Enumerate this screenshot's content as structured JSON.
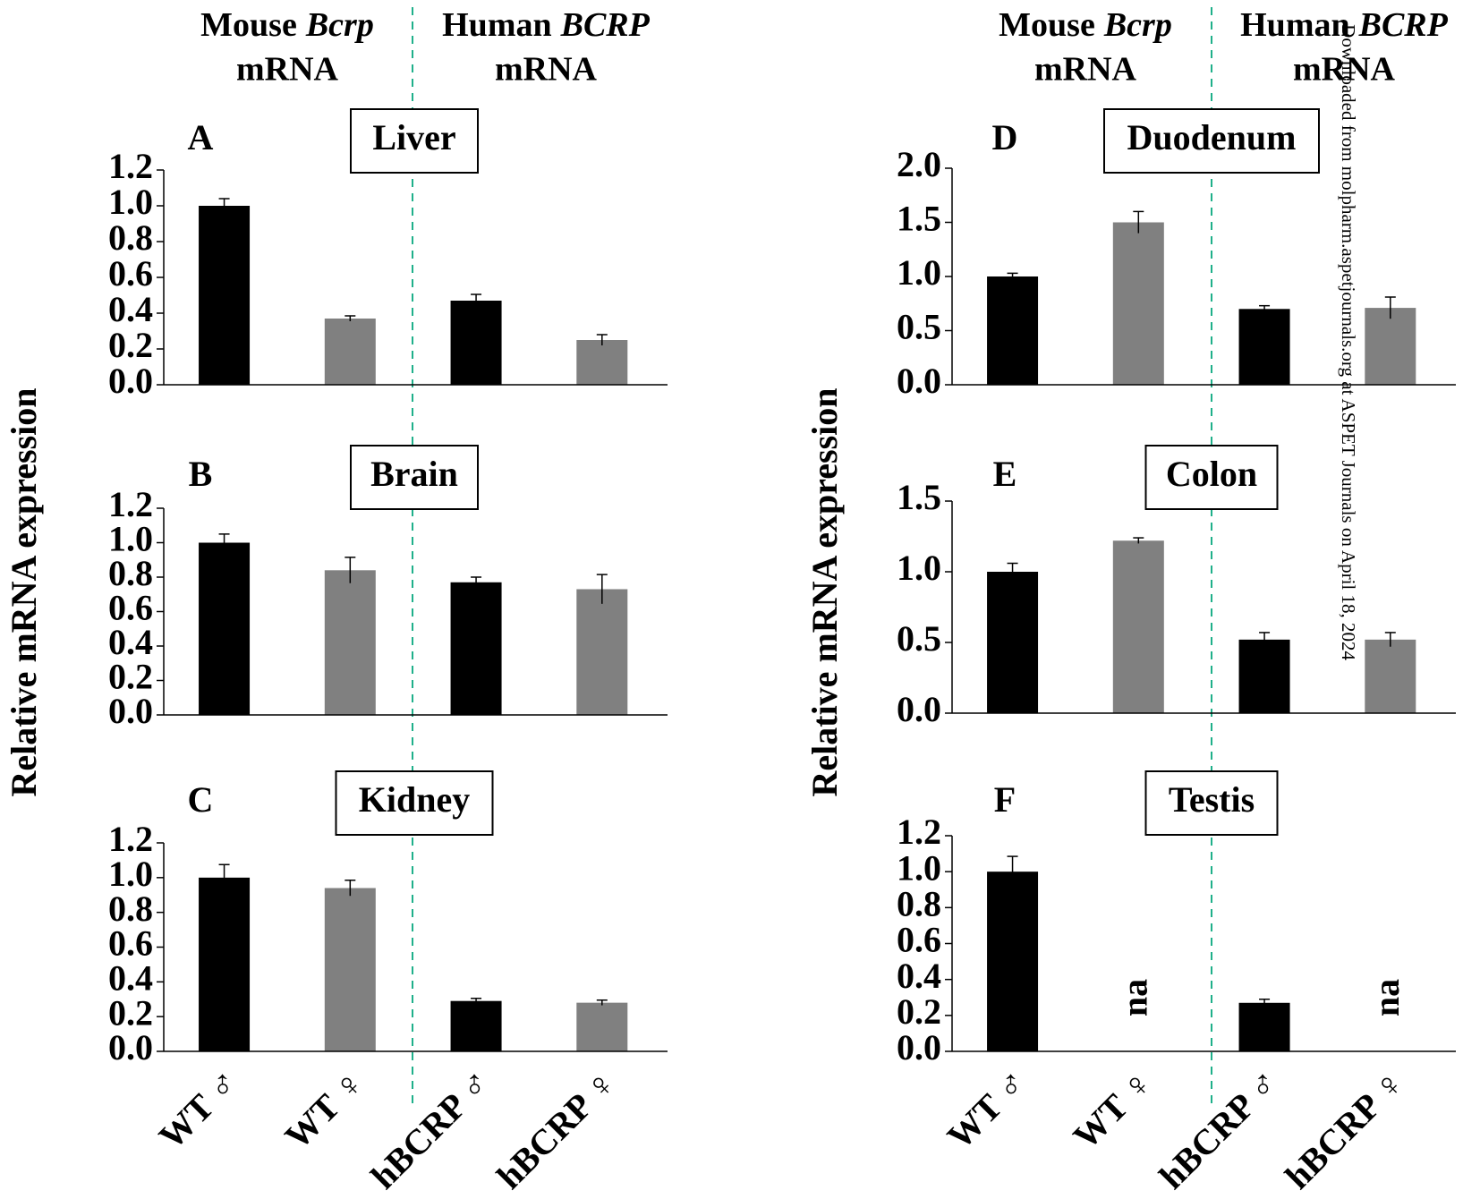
{
  "headers": [
    {
      "species": "Mouse",
      "gene": "Bcrp",
      "unit": "mRNA"
    },
    {
      "species": "Human",
      "gene": "BCRP",
      "unit": "mRNA"
    },
    {
      "species": "Mouse",
      "gene": "Bcrp",
      "unit": "mRNA"
    },
    {
      "species": "Human",
      "gene": "BCRP",
      "unit": "mRNA"
    }
  ],
  "y_axis_labels": [
    "Relative mRNA expression",
    "Relative mRNA expression"
  ],
  "watermark": "Downloaded from molpharm.aspetjournals.org at ASPET Journals on April 18, 2024",
  "chart_data": [
    {
      "type": "bar",
      "panel": "A",
      "title": "Liver",
      "values": [
        1.0,
        0.37,
        0.47,
        0.25
      ],
      "errors": [
        0.04,
        0.015,
        0.035,
        0.03
      ],
      "colors": [
        "#000000",
        "#808080",
        "#000000",
        "#808080"
      ],
      "ylim": [
        0,
        1.2
      ],
      "yticks": [
        {
          "value": 0,
          "label": "0.0"
        },
        0.2,
        0.4,
        0.6,
        0.8,
        {
          "value": 1,
          "label": "1.0"
        },
        1.2
      ]
    },
    {
      "type": "bar",
      "panel": "B",
      "title": "Brain",
      "values": [
        1.0,
        0.84,
        0.77,
        0.73
      ],
      "errors": [
        0.05,
        0.075,
        0.03,
        0.085
      ],
      "colors": [
        "#000000",
        "#808080",
        "#000000",
        "#808080"
      ],
      "ylim": [
        0,
        1.2
      ],
      "yticks": [
        {
          "value": 0,
          "label": "0.0"
        },
        0.2,
        0.4,
        0.6,
        0.8,
        {
          "value": 1,
          "label": "1.0"
        },
        1.2
      ]
    },
    {
      "type": "bar",
      "panel": "C",
      "title": "Kidney",
      "categories": [
        "WT ♂",
        "WT ♀",
        "hBCRP ♂",
        "hBCRP ♀"
      ],
      "values": [
        1.0,
        0.94,
        0.29,
        0.28
      ],
      "errors": [
        0.075,
        0.045,
        0.015,
        0.015
      ],
      "colors": [
        "#000000",
        "#808080",
        "#000000",
        "#808080"
      ],
      "ylim": [
        0,
        1.2
      ],
      "yticks": [
        {
          "value": 0,
          "label": "0.0"
        },
        0.2,
        0.4,
        0.6,
        0.8,
        {
          "value": 1,
          "label": "1.0"
        },
        1.2
      ]
    },
    {
      "type": "bar",
      "panel": "D",
      "title": "Duodenum",
      "values": [
        1.0,
        1.5,
        0.7,
        0.71
      ],
      "errors": [
        0.03,
        0.1,
        0.03,
        0.1
      ],
      "colors": [
        "#000000",
        "#808080",
        "#000000",
        "#808080"
      ],
      "ylim": [
        0,
        2
      ],
      "yticks": [
        {
          "value": 0,
          "label": "0.0"
        },
        0.5,
        {
          "value": 1,
          "label": "1.0"
        },
        1.5,
        {
          "value": 2,
          "label": "2.0"
        }
      ]
    },
    {
      "type": "bar",
      "panel": "E",
      "title": "Colon",
      "values": [
        1.0,
        1.22,
        0.52,
        0.52
      ],
      "errors": [
        0.06,
        0.02,
        0.05,
        0.05
      ],
      "colors": [
        "#000000",
        "#808080",
        "#000000",
        "#808080"
      ],
      "ylim": [
        0,
        1.5
      ],
      "yticks": [
        {
          "value": 0,
          "label": "0.0"
        },
        0.5,
        {
          "value": 1,
          "label": "1.0"
        },
        1.5
      ]
    },
    {
      "type": "bar",
      "panel": "F",
      "title": "Testis",
      "categories": [
        "WT ♂",
        "WT ♀",
        "hBCRP ♂",
        "hBCRP ♀"
      ],
      "values": [
        1.0,
        null,
        0.27,
        null
      ],
      "errors": [
        0.085,
        null,
        0.02,
        null
      ],
      "value_labels": [
        null,
        "na",
        null,
        "na"
      ],
      "colors": [
        "#000000",
        "#808080",
        "#000000",
        "#808080"
      ],
      "ylim": [
        0,
        1.2
      ],
      "yticks": [
        {
          "value": 0,
          "label": "0.0"
        },
        0.2,
        0.4,
        0.6,
        0.8,
        {
          "value": 1,
          "label": "1.0"
        },
        1.2
      ]
    }
  ]
}
